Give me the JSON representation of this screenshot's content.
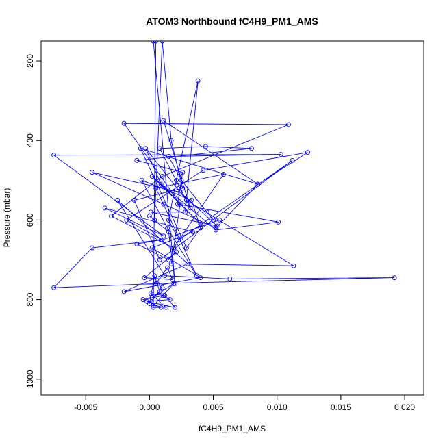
{
  "chart_data": {
    "type": "line",
    "title": "ATOM3 Northbound fC4H9_PM1_AMS",
    "xlabel": "fC4H9_PM1_AMS",
    "ylabel": "Pressure (mbar)",
    "xlim": [
      -0.0085,
      0.0215
    ],
    "ylim": [
      1040,
      150
    ],
    "y_reversed": true,
    "x_ticks": [
      -0.005,
      0.0,
      0.005,
      0.01,
      0.015,
      0.02
    ],
    "x_tick_labels": [
      "-0.005",
      "0.000",
      "0.005",
      "0.010",
      "0.015",
      "0.020"
    ],
    "y_ticks": [
      200,
      400,
      600,
      800,
      1000
    ],
    "y_tick_labels": [
      "200",
      "400",
      "600",
      "800",
      "1000"
    ],
    "grid": false,
    "legend": "none",
    "color": "#0000ff",
    "markers": "open-circle",
    "series": [
      {
        "x": [
          0.0005,
          0.0003,
          0.0009,
          -0.0005,
          0.0011,
          0.0016,
          -0.0002,
          0.002,
          0.0012,
          0.0001,
          0.0013,
          0.0003,
          0.0019,
          0.0002,
          0.0008,
          0.0004,
          0.0,
          0.001,
          0.0005,
          0.0014,
          0.0018,
          -0.0004,
          0.0021,
          0.0015,
          -0.001,
          0.0009,
          -0.0045,
          -0.0075,
          0.0006,
          0.0192,
          0.0063,
          0.0012,
          -0.0025,
          0.003,
          -0.002,
          0.004,
          0.0002,
          0.0034,
          -0.0035,
          0.0011,
          -0.0075,
          0.0103,
          0.0015,
          0.0025,
          0.0045,
          0.005,
          0.0055,
          0.001,
          -0.0018,
          0.0042,
          0.0124,
          0.0085,
          0.0011,
          0.0032,
          0.0008,
          0.0044,
          0.008,
          -0.001,
          0.0026,
          0.0022,
          0.0101,
          0.0052,
          0.0002,
          0.004,
          0.0009,
          -0.0003,
          0.0029,
          0.0113,
          0.0017,
          0.0024,
          -0.002,
          0.0109,
          0.001,
          -0.003,
          0.0019,
          0.0058,
          0.0005,
          0.0037,
          0.0014,
          -0.0006,
          0.0033,
          0.004,
          0.0029,
          -0.0007,
          0.0085,
          0.0052,
          0.0011,
          -0.0045,
          0.0024,
          0.0053,
          0.0001,
          0.0028,
          0.0038,
          0.0021,
          0.0015,
          0.0023,
          0.0112,
          0.0008,
          -0.0012,
          0.0026,
          0.0017,
          0.001,
          0.0004,
          0.0,
          0.0015,
          0.002,
          0.0003
        ],
        "y": [
          150,
          820,
          820,
          800,
          790,
          800,
          805,
          820,
          790,
          785,
          820,
          815,
          760,
          795,
          780,
          740,
          810,
          770,
          760,
          720,
          750,
          745,
          680,
          700,
          660,
          650,
          670,
          770,
          760,
          745,
          748,
          740,
          550,
          710,
          780,
          745,
          670,
          630,
          570,
          640,
          437,
          435,
          440,
          500,
          580,
          600,
          600,
          650,
          600,
          475,
          430,
          510,
          350,
          570,
          420,
          415,
          420,
          450,
          480,
          560,
          605,
          625,
          490,
          610,
          510,
          420,
          550,
          715,
          710,
          560,
          357,
          360,
          490,
          590,
          670,
          485,
          520,
          740,
          620,
          500,
          550,
          620,
          670,
          420,
          510,
          620,
          560,
          480,
          530,
          615,
          580,
          580,
          250,
          500,
          600,
          650,
          450,
          700,
          550,
          520,
          400,
          150,
          600,
          590,
          630,
          760,
          150
        ]
      }
    ]
  }
}
